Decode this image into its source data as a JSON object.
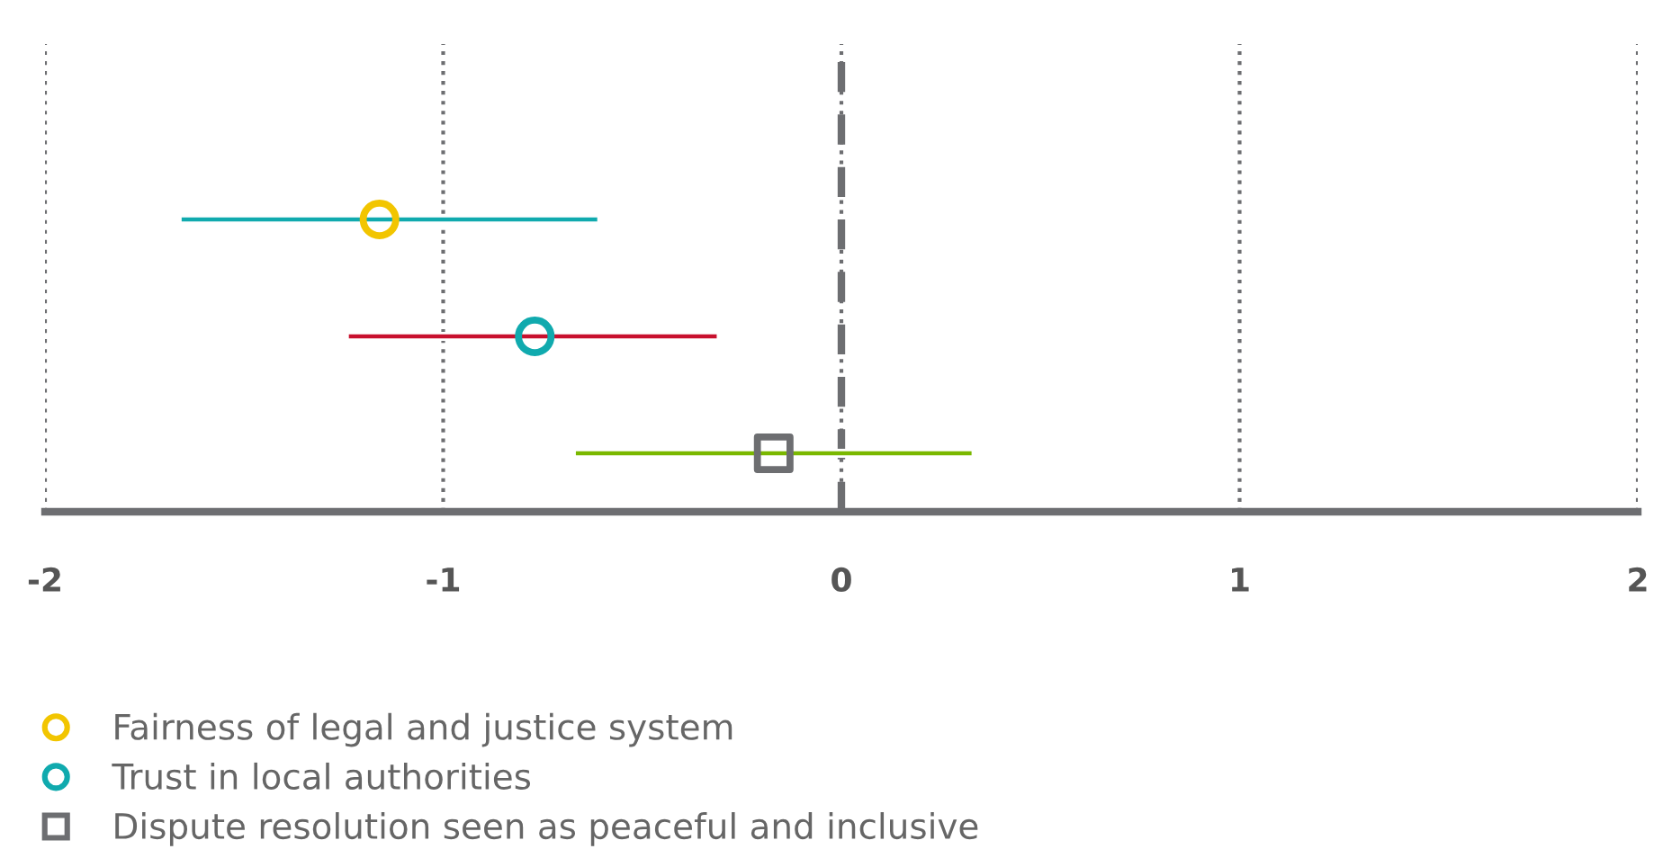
{
  "chart_data": {
    "type": "scatter",
    "orientation": "horizontal",
    "categories": [
      null,
      null,
      null,
      null
    ],
    "series": [
      {
        "type": "bar",
        "values": [
          null,
          1.05,
          0.93,
          1.0
        ],
        "base": [
          null,
          -1.66,
          -1.24,
          -0.67
        ],
        "colors": [
          "#10aaae",
          "#10aaae",
          "#c8102e",
          "#7ab800"
        ]
      },
      {
        "name": "Fairness of legal and justice system",
        "color": "#f2c500",
        "marker": "circle",
        "values": [
          null,
          -1.16,
          null,
          null
        ]
      },
      {
        "name": "Trust in local authorities",
        "color": "#10aaae",
        "marker": "circle",
        "values": [
          null,
          null,
          -0.77,
          null
        ]
      },
      {
        "name": "Dispute resolution seen as peaceful and inclusive",
        "color": "#6d6e71",
        "marker": "square",
        "values": [
          null,
          null,
          null,
          -0.17
        ]
      }
    ],
    "xlim": [
      -2,
      2
    ],
    "xticks": [
      -2,
      -1,
      0,
      1,
      2
    ],
    "ref_lines": [
      {
        "axis": "x",
        "value": 0,
        "color": "#6d6e71",
        "line_style": "dashed"
      }
    ],
    "grid": "x",
    "legend": "bottom left",
    "tick_labels": "x"
  }
}
